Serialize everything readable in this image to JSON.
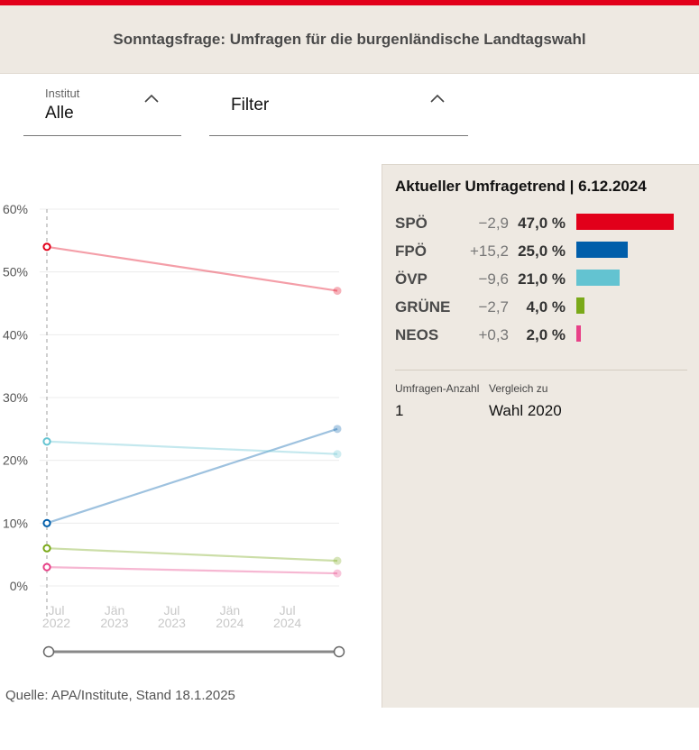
{
  "header": {
    "title": "Sonntagsfrage: Umfragen für die burgenländische Landtagswahl"
  },
  "dropdowns": {
    "institut": {
      "label": "Institut",
      "value": "Alle"
    },
    "filter": {
      "value": "Filter"
    }
  },
  "chart_data": {
    "type": "line",
    "y_ticks": [
      "60%",
      "50%",
      "40%",
      "30%",
      "20%",
      "10%",
      "0%"
    ],
    "y_tick_values": [
      60,
      50,
      40,
      30,
      20,
      10,
      0
    ],
    "ylim": [
      0,
      60
    ],
    "x_ticks": [
      {
        "month": "Jul",
        "year": "2022"
      },
      {
        "month": "Jän",
        "year": "2023"
      },
      {
        "month": "Jul",
        "year": "2023"
      },
      {
        "month": "Jän",
        "year": "2024"
      },
      {
        "month": "Jul",
        "year": "2024"
      }
    ],
    "x_tick_dates": [
      "2022-07-01",
      "2023-01-01",
      "2023-07-01",
      "2024-01-01",
      "2024-07-01"
    ],
    "x_range": [
      "2022-06-01",
      "2024-12-06"
    ],
    "x": [
      "2022-06-01",
      "2024-12-06"
    ],
    "grid": true,
    "series": [
      {
        "name": "SPÖ",
        "values": [
          54,
          47
        ],
        "color": "#e2001a"
      },
      {
        "name": "FPÖ",
        "values": [
          10,
          25
        ],
        "color": "#005eaa"
      },
      {
        "name": "ÖVP",
        "values": [
          23,
          21
        ],
        "color": "#63c3d1"
      },
      {
        "name": "GRÜNE",
        "values": [
          6,
          4
        ],
        "color": "#7aa919"
      },
      {
        "name": "NEOS",
        "values": [
          3,
          2
        ],
        "color": "#e84188"
      }
    ]
  },
  "trend": {
    "title": "Aktueller Umfragetrend | 6.12.2024",
    "parties": [
      {
        "name": "SPÖ",
        "diff": "−2,9",
        "value_label": "47,0 %",
        "value": 47.0,
        "color": "#e2001a"
      },
      {
        "name": "FPÖ",
        "diff": "+15,2",
        "value_label": "25,0 %",
        "value": 25.0,
        "color": "#005eaa"
      },
      {
        "name": "ÖVP",
        "diff": "−9,6",
        "value_label": "21,0 %",
        "value": 21.0,
        "color": "#63c3d1"
      },
      {
        "name": "GRÜNE",
        "diff": "−2,7",
        "value_label": "4,0 %",
        "value": 4.0,
        "color": "#7aa919"
      },
      {
        "name": "NEOS",
        "diff": "+0,3",
        "value_label": "2,0 %",
        "value": 2.0,
        "color": "#e84188"
      }
    ],
    "count_label": "Umfragen-Anzahl",
    "count_value": "1",
    "compare_label": "Vergleich zu",
    "compare_value": "Wahl 2020"
  },
  "source": "Quelle: APA/Institute, Stand 18.1.2025"
}
